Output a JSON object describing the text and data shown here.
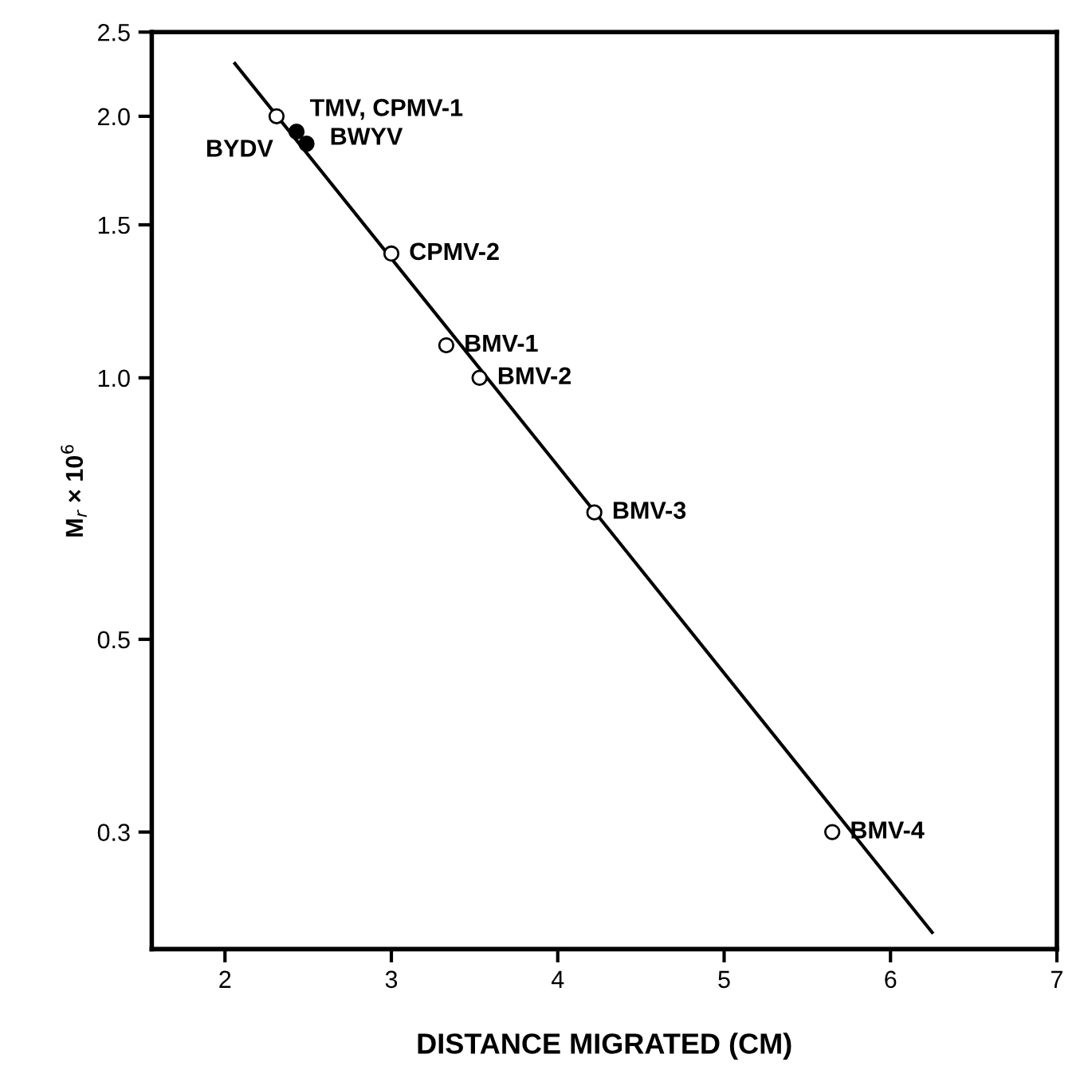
{
  "chart_data": {
    "type": "scatter",
    "xlabel": "DISTANCE MIGRATED (CM)",
    "ylabel": "M$_{r}$ × 10$^{6}$",
    "log": "y",
    "xlim": [
      1.56,
      7
    ],
    "xticks": [
      2,
      3,
      4,
      5,
      6,
      7
    ],
    "ylim": [
      0.22,
      2.5
    ],
    "yticks": [
      {
        "value": 0.3,
        "label": "0.3"
      },
      {
        "value": 0.5,
        "label": "0.5"
      },
      {
        "value": 1.0,
        "label": "1.0"
      },
      {
        "value": 1.5,
        "label": "1.5"
      },
      {
        "value": 2.0,
        "label": "2.0"
      },
      {
        "value": 2.5,
        "label": "2.5"
      }
    ],
    "grid": false,
    "legend": false,
    "series": [
      {
        "type": "line",
        "color": "#000000",
        "marker": "none",
        "line_style": "solid",
        "x": [
          2.06,
          6.25
        ],
        "values": [
          2.3,
          0.23
        ]
      },
      {
        "color": "#ffffff",
        "marker": "circle",
        "x": [
          2.31,
          3.0,
          3.33,
          3.53,
          4.22,
          5.65
        ],
        "values": [
          2.0,
          1.39,
          1.09,
          1.0,
          0.7,
          0.3
        ]
      },
      {
        "color": "#000000",
        "marker": "circle",
        "x": [
          2.43,
          2.49
        ],
        "values": [
          1.92,
          1.86
        ]
      }
    ],
    "annotations": [
      {
        "text": "TMV, CPMV-1",
        "x": 2.31,
        "y": 2.0
      },
      {
        "text": "BWYV",
        "x": 2.43,
        "y": 1.92
      },
      {
        "text": "BYDV",
        "x": 2.49,
        "y": 1.86
      },
      {
        "text": "CPMV-2",
        "x": 3.0,
        "y": 1.39
      },
      {
        "text": "BMV-1",
        "x": 3.33,
        "y": 1.09
      },
      {
        "text": "BMV-2",
        "x": 3.53,
        "y": 1.0
      },
      {
        "text": "BMV-3",
        "x": 4.22,
        "y": 0.7
      },
      {
        "text": "BMV-4",
        "x": 5.65,
        "y": 0.3
      }
    ]
  }
}
